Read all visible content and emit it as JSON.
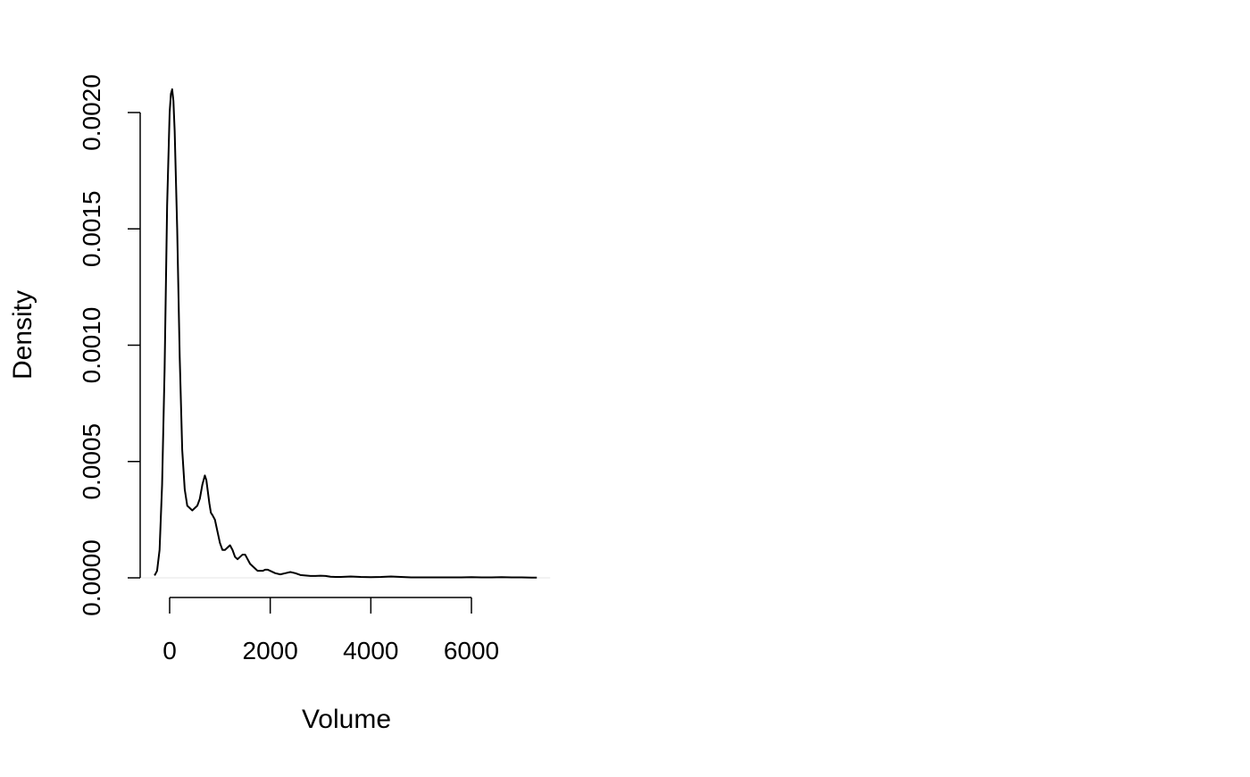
{
  "chart_data": {
    "type": "line",
    "title": "",
    "xlabel": "Volume",
    "ylabel": "Density",
    "xlim": [
      -300,
      7300
    ],
    "ylim": [
      0,
      0.0021
    ],
    "x_ticks": [
      0,
      2000,
      4000,
      6000
    ],
    "x_tick_labels": [
      "0",
      "2000",
      "4000",
      "6000"
    ],
    "y_ticks": [
      0,
      0.0005,
      0.001,
      0.0015,
      0.002
    ],
    "y_tick_labels": [
      "0.0000",
      "0.0005",
      "0.0010",
      "0.0015",
      "0.0020"
    ],
    "grid": false,
    "legend": "none",
    "line_color": "#000000",
    "series": [
      {
        "x": [
          -300,
          -250,
          -200,
          -150,
          -100,
          -50,
          0,
          25,
          50,
          75,
          100,
          150,
          200,
          250,
          300,
          350,
          400,
          450,
          500,
          550,
          600,
          650,
          700,
          730,
          760,
          790,
          820,
          850,
          900,
          950,
          1000,
          1050,
          1100,
          1150,
          1200,
          1250,
          1300,
          1350,
          1400,
          1450,
          1500,
          1550,
          1600,
          1650,
          1700,
          1750,
          1800,
          1850,
          1900,
          1950,
          2000,
          2100,
          2200,
          2300,
          2400,
          2500,
          2600,
          2700,
          2800,
          2900,
          3000,
          3100,
          3200,
          3300,
          3400,
          3500,
          3600,
          3800,
          4000,
          4200,
          4400,
          4600,
          4800,
          5000,
          5200,
          5400,
          5600,
          5800,
          6000,
          6200,
          6400,
          6600,
          6800,
          7000,
          7200,
          7300
        ],
        "y": [
          1e-05,
          3e-05,
          0.00012,
          0.0004,
          0.0009,
          0.0016,
          0.002,
          0.00208,
          0.0021,
          0.00205,
          0.00192,
          0.0015,
          0.00095,
          0.00055,
          0.00038,
          0.00031,
          0.0003,
          0.00029,
          0.0003,
          0.00031,
          0.00034,
          0.0004,
          0.00044,
          0.00042,
          0.00037,
          0.00032,
          0.00028,
          0.00027,
          0.00025,
          0.0002,
          0.00015,
          0.00012,
          0.00012,
          0.00013,
          0.00014,
          0.00012,
          9e-05,
          8e-05,
          9e-05,
          0.0001,
          0.0001,
          8e-05,
          6e-05,
          5e-05,
          4e-05,
          3e-05,
          3e-05,
          3e-05,
          3.5e-05,
          3.5e-05,
          3e-05,
          2e-05,
          1.5e-05,
          2e-05,
          2.5e-05,
          2e-05,
          1.2e-05,
          1e-05,
          8e-06,
          8e-06,
          9e-06,
          8e-06,
          5e-06,
          4e-06,
          4e-06,
          5e-06,
          6e-06,
          4e-06,
          3e-06,
          4e-06,
          6e-06,
          4e-06,
          2e-06,
          2e-06,
          2e-06,
          2e-06,
          2e-06,
          2e-06,
          3e-06,
          2e-06,
          2e-06,
          3e-06,
          2e-06,
          2e-06,
          1e-06,
          1e-06
        ]
      }
    ]
  }
}
